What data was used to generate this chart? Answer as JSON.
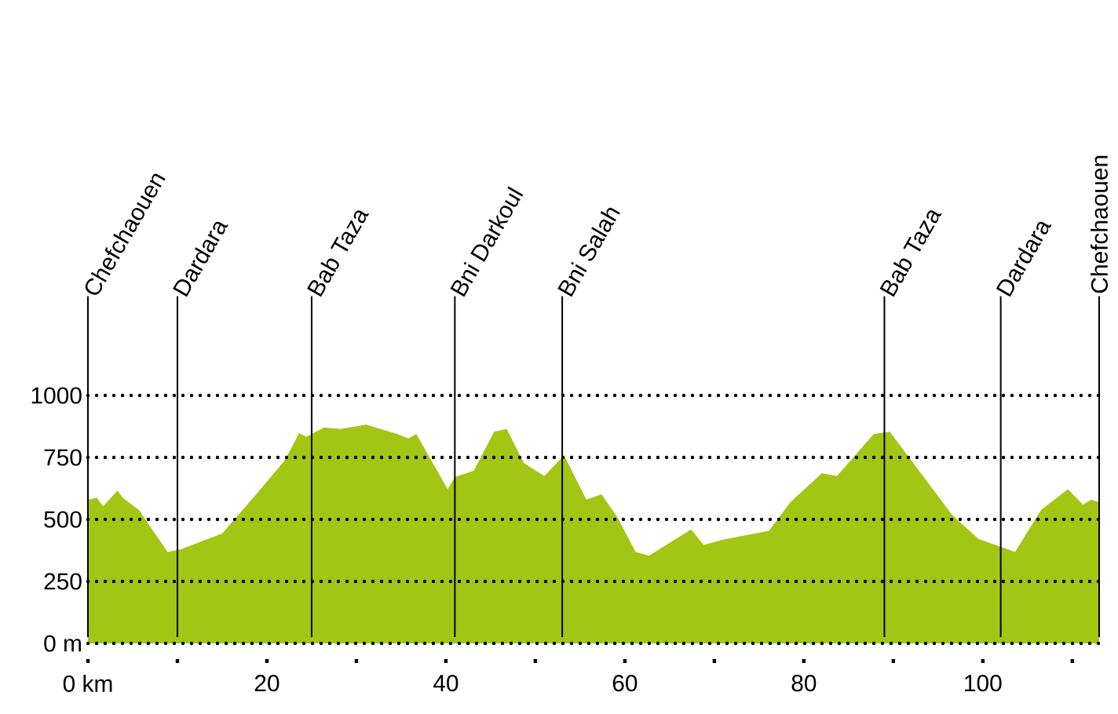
{
  "chart_data": {
    "type": "area",
    "color": "#a3c514",
    "x": [
      0,
      1,
      1.7,
      3.3,
      3.9,
      5.7,
      8.9,
      10.4,
      15,
      18.8,
      22,
      23.6,
      24.4,
      26.4,
      28.2,
      31.1,
      34.6,
      35.8,
      36.7,
      40.2,
      41,
      43.1,
      45.4,
      46.8,
      48.7,
      51,
      53.2,
      55.7,
      57.4,
      59.2,
      61.2,
      62.7,
      67.4,
      68.8,
      70.9,
      76.1,
      78.5,
      82,
      83.7,
      87.8,
      89.6,
      96.6,
      99.5,
      103.6,
      106.5,
      109.5,
      111.2,
      112.1,
      113
    ],
    "values": [
      580,
      587,
      553,
      616,
      587,
      538,
      369,
      380,
      443,
      601,
      738,
      848,
      833,
      871,
      865,
      882,
      844,
      827,
      844,
      622,
      671,
      696,
      854,
      865,
      728,
      675,
      759,
      580,
      601,
      506,
      369,
      354,
      460,
      397,
      418,
      454,
      570,
      686,
      675,
      844,
      854,
      517,
      422,
      369,
      538,
      622,
      559,
      580,
      570
    ],
    "xlim": [
      0,
      113
    ],
    "ylim": [
      0,
      1400
    ],
    "xticks": [
      {
        "value": 0,
        "label": "0 km"
      },
      {
        "value": 10,
        "label": null
      },
      20,
      {
        "value": 30,
        "label": null
      },
      40,
      {
        "value": 50,
        "label": null
      },
      60,
      {
        "value": 70,
        "label": null
      },
      80,
      {
        "value": 90,
        "label": null
      },
      100,
      {
        "value": 110,
        "label": null
      }
    ],
    "yticks": [
      {
        "value": 0,
        "label": "0 m"
      },
      250,
      500,
      750,
      1000
    ],
    "grid": "y",
    "ref_lines": [
      {
        "axis": "x",
        "value": 0,
        "label": "Chefchaouen"
      },
      {
        "axis": "x",
        "value": 10,
        "label": "Dardara"
      },
      {
        "axis": "x",
        "value": 25,
        "label": "Bab Taza"
      },
      {
        "axis": "x",
        "value": 41,
        "label": "Bni Darkoul"
      },
      {
        "axis": "x",
        "value": 53,
        "label": "Bni Salah"
      },
      {
        "axis": "x",
        "value": 89,
        "label": "Bab Taza"
      },
      {
        "axis": "x",
        "value": 102,
        "label": "Dardara"
      },
      {
        "axis": "x",
        "value": 113,
        "label": "Chefchaouen"
      }
    ]
  }
}
